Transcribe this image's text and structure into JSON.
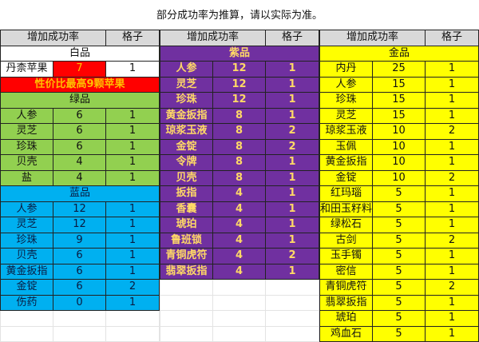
{
  "title": "部分成功率为推算，请以实际为准。",
  "header": {
    "rate": "增加成功率",
    "slots": "格子"
  },
  "colors": {
    "white": "#ffffff",
    "green": "#92d050",
    "blue": "#00b0f0",
    "purple": "#7030a0",
    "gold": "#ffff00",
    "red": "#ff0000",
    "header": "#d9d9d9"
  },
  "columns": [
    {
      "sections": [
        {
          "name": "白品",
          "tier": "white",
          "rows": [
            {
              "item": "丹柰苹果",
              "rate": "7",
              "slots": "1",
              "highlight": "red"
            }
          ],
          "note": "性价比最高9颗苹果"
        },
        {
          "name": "绿品",
          "tier": "green",
          "rows": [
            {
              "item": "人参",
              "rate": "6",
              "slots": "1"
            },
            {
              "item": "灵芝",
              "rate": "6",
              "slots": "1"
            },
            {
              "item": "珍珠",
              "rate": "6",
              "slots": "1"
            },
            {
              "item": "贝壳",
              "rate": "4",
              "slots": "1"
            },
            {
              "item": "盐",
              "rate": "4",
              "slots": "1"
            }
          ]
        },
        {
          "name": "蓝品",
          "tier": "blue",
          "rows": [
            {
              "item": "人参",
              "rate": "12",
              "slots": "1"
            },
            {
              "item": "灵芝",
              "rate": "12",
              "slots": "1"
            },
            {
              "item": "珍珠",
              "rate": "9",
              "slots": "1"
            },
            {
              "item": "贝壳",
              "rate": "6",
              "slots": "1"
            },
            {
              "item": "黄金扳指",
              "rate": "6",
              "slots": "1"
            },
            {
              "item": "金锭",
              "rate": "6",
              "slots": "2"
            },
            {
              "item": "伤药",
              "rate": "0",
              "slots": "1"
            }
          ]
        }
      ]
    },
    {
      "sections": [
        {
          "name": "紫品",
          "tier": "purple",
          "rows": [
            {
              "item": "人参",
              "rate": "12",
              "slots": "1"
            },
            {
              "item": "灵芝",
              "rate": "12",
              "slots": "1"
            },
            {
              "item": "珍珠",
              "rate": "12",
              "slots": "1"
            },
            {
              "item": "黄金扳指",
              "rate": "8",
              "slots": "1"
            },
            {
              "item": "琼浆玉液",
              "rate": "8",
              "slots": "2"
            },
            {
              "item": "金锭",
              "rate": "8",
              "slots": "2"
            },
            {
              "item": "令牌",
              "rate": "8",
              "slots": "1"
            },
            {
              "item": "贝壳",
              "rate": "8",
              "slots": "1"
            },
            {
              "item": "扳指",
              "rate": "4",
              "slots": "1"
            },
            {
              "item": "香囊",
              "rate": "4",
              "slots": "1"
            },
            {
              "item": "琥珀",
              "rate": "4",
              "slots": "1"
            },
            {
              "item": "鲁班锁",
              "rate": "4",
              "slots": "1"
            },
            {
              "item": "青铜虎符",
              "rate": "4",
              "slots": "2"
            },
            {
              "item": "翡翠扳指",
              "rate": "4",
              "slots": "1"
            }
          ]
        }
      ]
    },
    {
      "sections": [
        {
          "name": "金品",
          "tier": "gold",
          "rows": [
            {
              "item": "内丹",
              "rate": "25",
              "slots": "1"
            },
            {
              "item": "人参",
              "rate": "15",
              "slots": "1"
            },
            {
              "item": "珍珠",
              "rate": "15",
              "slots": "1"
            },
            {
              "item": "灵芝",
              "rate": "15",
              "slots": "1"
            },
            {
              "item": "琼浆玉液",
              "rate": "10",
              "slots": "2"
            },
            {
              "item": "玉佩",
              "rate": "10",
              "slots": "1"
            },
            {
              "item": "黄金扳指",
              "rate": "10",
              "slots": "1"
            },
            {
              "item": "金锭",
              "rate": "10",
              "slots": "2"
            },
            {
              "item": "红玛瑙",
              "rate": "5",
              "slots": "1"
            },
            {
              "item": "和田玉籽料",
              "rate": "5",
              "slots": "1"
            },
            {
              "item": "绿松石",
              "rate": "5",
              "slots": "1"
            },
            {
              "item": "古剑",
              "rate": "5",
              "slots": "2"
            },
            {
              "item": "玉手镯",
              "rate": "5",
              "slots": "1"
            },
            {
              "item": "密信",
              "rate": "5",
              "slots": "1"
            },
            {
              "item": "青铜虎符",
              "rate": "5",
              "slots": "2"
            },
            {
              "item": "翡翠扳指",
              "rate": "5",
              "slots": "1"
            },
            {
              "item": "琥珀",
              "rate": "5",
              "slots": "1"
            },
            {
              "item": "鸡血石",
              "rate": "5",
              "slots": "1"
            }
          ]
        }
      ]
    }
  ]
}
